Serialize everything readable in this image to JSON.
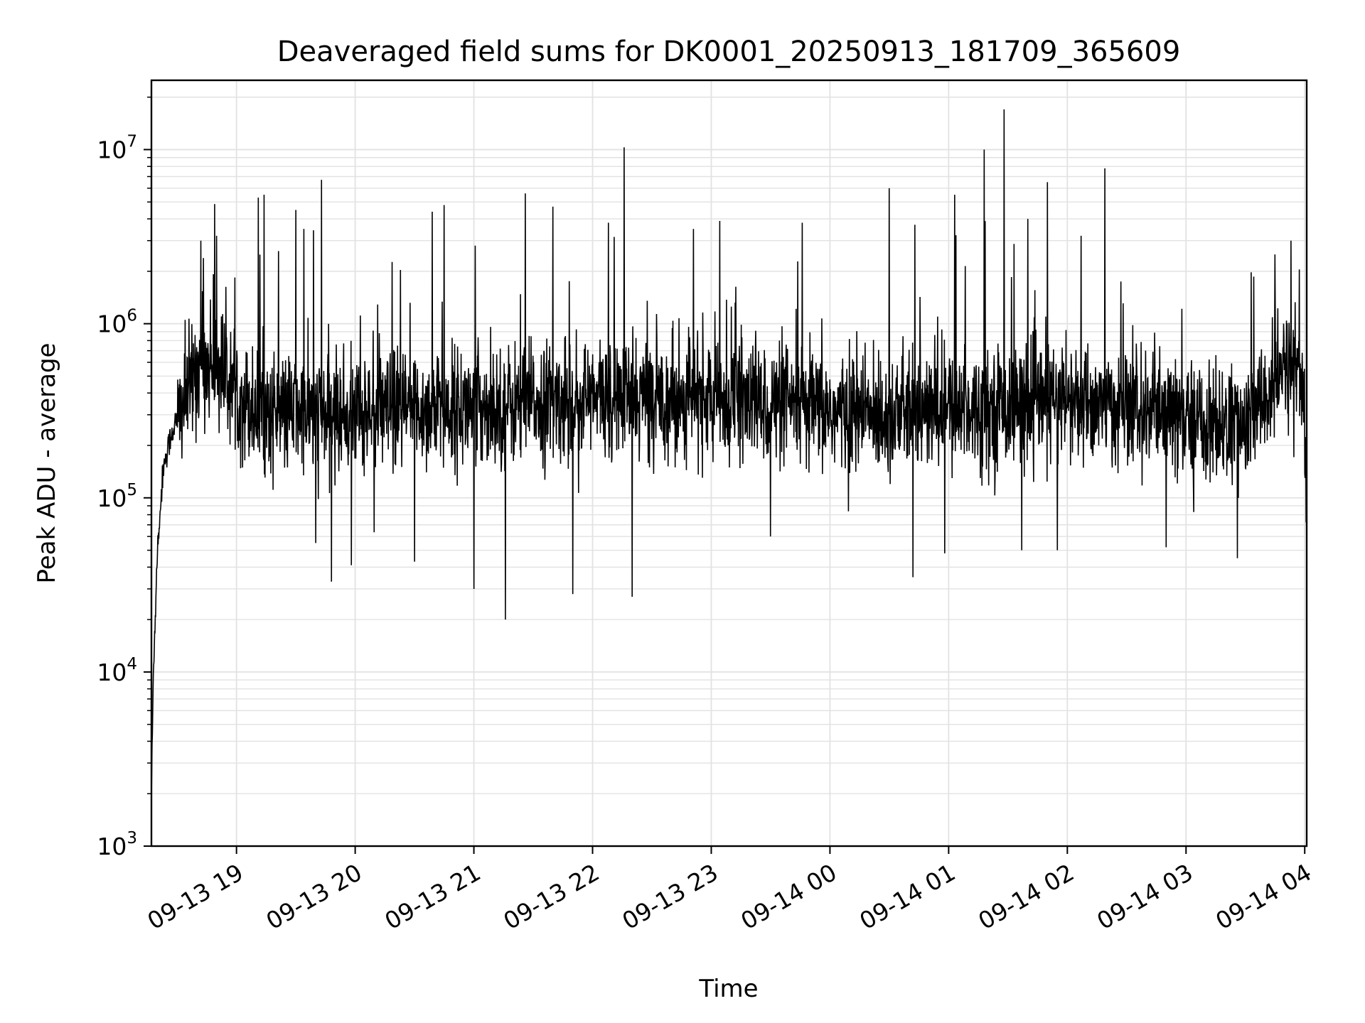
{
  "chart_data": {
    "type": "line",
    "title": "Deaveraged field sums for DK0001_20250913_181709_365609",
    "xlabel": "Time",
    "ylabel": "Peak ADU - average",
    "yscale": "log",
    "ylim": [
      1000,
      25000000
    ],
    "xlim": [
      "09-13 18:17",
      "09-14 04:01"
    ],
    "grid": true,
    "line_color": "#000000",
    "grid_color": "#e2e2e2",
    "x_ticks": [
      "09-13 19",
      "09-13 20",
      "09-13 21",
      "09-13 22",
      "09-13 23",
      "09-14 00",
      "09-14 01",
      "09-14 02",
      "09-14 03",
      "09-14 04"
    ],
    "y_ticks": [
      {
        "value": 1000,
        "base": "10",
        "exp": "3"
      },
      {
        "value": 10000,
        "base": "10",
        "exp": "4"
      },
      {
        "value": 100000,
        "base": "10",
        "exp": "5"
      },
      {
        "value": 1000000,
        "base": "10",
        "exp": "6"
      },
      {
        "value": 10000000,
        "base": "10",
        "exp": "7"
      }
    ],
    "series": [
      {
        "x": [
          "09-13 18:17",
          "09-13 18:18",
          "09-13 18:20",
          "09-13 18:23",
          "09-13 18:27",
          "09-13 18:33",
          "09-13 18:40",
          "09-13 18:48",
          "09-13 18:55",
          "09-13 19:00",
          "09-13 19:10",
          "09-13 19:30",
          "09-13 20:00",
          "09-13 20:30",
          "09-13 21:00",
          "09-13 21:30",
          "09-13 22:00",
          "09-13 22:30",
          "09-13 23:00",
          "09-13 23:30",
          "09-14 00:00",
          "09-14 00:30",
          "09-14 01:00",
          "09-14 01:30",
          "09-14 02:00",
          "09-14 02:30",
          "09-14 03:00",
          "09-14 03:30",
          "09-14 03:50",
          "09-14 03:57",
          "09-14 04:00",
          "09-14 04:01"
        ],
        "y": [
          2000,
          10000,
          50000,
          150000,
          230000,
          350000,
          550000,
          600000,
          500000,
          400000,
          320000,
          300000,
          300000,
          320000,
          330000,
          350000,
          370000,
          380000,
          370000,
          340000,
          310000,
          300000,
          320000,
          340000,
          360000,
          320000,
          280000,
          250000,
          550000,
          600000,
          250000,
          70000
        ],
        "spikes": [
          {
            "x": "09-13 18:42",
            "y": 3000000
          },
          {
            "x": "09-13 18:50",
            "y": 3200000
          },
          {
            "x": "09-13 19:11",
            "y": 5300000
          },
          {
            "x": "09-13 19:14",
            "y": 5500000
          },
          {
            "x": "09-13 19:30",
            "y": 4500000
          },
          {
            "x": "09-13 19:34",
            "y": 3500000
          },
          {
            "x": "09-13 19:43",
            "y": 6700000
          },
          {
            "x": "09-13 20:39",
            "y": 4400000
          },
          {
            "x": "09-13 20:45",
            "y": 4800000
          },
          {
            "x": "09-13 21:26",
            "y": 5600000
          },
          {
            "x": "09-13 21:40",
            "y": 4700000
          },
          {
            "x": "09-13 22:16",
            "y": 10300000
          },
          {
            "x": "09-13 22:08",
            "y": 3800000
          },
          {
            "x": "09-13 22:51",
            "y": 3500000
          },
          {
            "x": "09-13 23:46",
            "y": 3800000
          },
          {
            "x": "09-14 00:30",
            "y": 6000000
          },
          {
            "x": "09-14 00:43",
            "y": 3700000
          },
          {
            "x": "09-14 01:03",
            "y": 5500000
          },
          {
            "x": "09-14 01:18",
            "y": 10000000
          },
          {
            "x": "09-14 01:28",
            "y": 17000000
          },
          {
            "x": "09-14 01:40",
            "y": 4000000
          },
          {
            "x": "09-14 01:50",
            "y": 6500000
          },
          {
            "x": "09-14 02:07",
            "y": 3200000
          },
          {
            "x": "09-14 02:19",
            "y": 7800000
          },
          {
            "x": "09-14 03:45",
            "y": 2500000
          },
          {
            "x": "09-14 03:53",
            "y": 3000000
          }
        ],
        "dips": [
          {
            "x": "09-13 19:40",
            "y": 55000
          },
          {
            "x": "09-13 19:48",
            "y": 33000
          },
          {
            "x": "09-13 19:58",
            "y": 41000
          },
          {
            "x": "09-13 20:30",
            "y": 43000
          },
          {
            "x": "09-13 21:00",
            "y": 30000
          },
          {
            "x": "09-13 21:16",
            "y": 20000
          },
          {
            "x": "09-13 21:50",
            "y": 28000
          },
          {
            "x": "09-13 22:20",
            "y": 27000
          },
          {
            "x": "09-13 23:30",
            "y": 60000
          },
          {
            "x": "09-14 00:42",
            "y": 35000
          },
          {
            "x": "09-14 00:58",
            "y": 48000
          },
          {
            "x": "09-14 01:37",
            "y": 50000
          },
          {
            "x": "09-14 01:55",
            "y": 50000
          },
          {
            "x": "09-14 02:50",
            "y": 52000
          },
          {
            "x": "09-14 03:26",
            "y": 45000
          }
        ]
      }
    ]
  }
}
